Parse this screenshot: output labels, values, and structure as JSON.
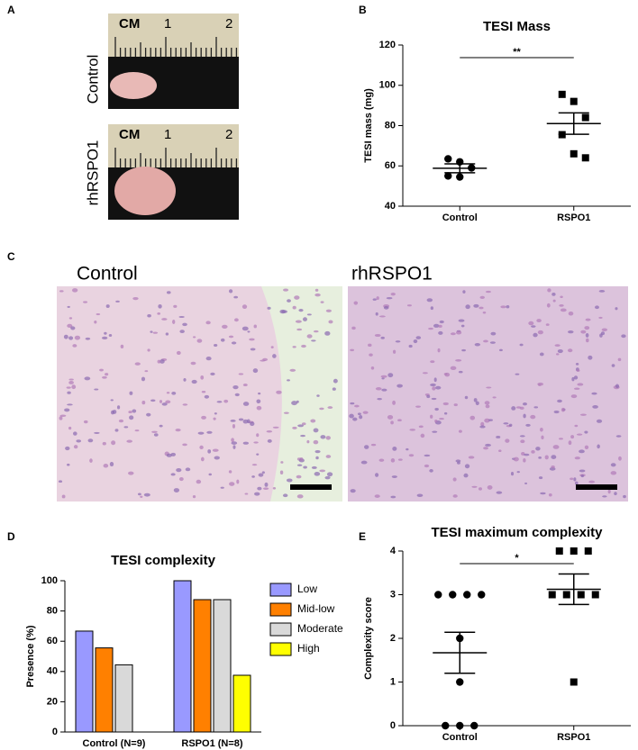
{
  "panel_letters": {
    "a": "A",
    "b": "B",
    "c": "C",
    "d": "D",
    "e": "E"
  },
  "panel_a": {
    "rows": [
      "Control",
      "rhRSPO1"
    ],
    "ruler_unit": "CM",
    "ruler_numbers": [
      1,
      2
    ]
  },
  "panel_c": {
    "labels": [
      "Control",
      "rhRSPO1"
    ]
  },
  "chart_data": [
    {
      "type": "scatter",
      "title": "TESI Mass",
      "y_label": "TESI mass (mg)",
      "categories": [
        "Control",
        "RSPO1"
      ],
      "values": [
        [
          63.5,
          62,
          59,
          55,
          54.5
        ],
        [
          95.5,
          92,
          84,
          75.5,
          66,
          64
        ]
      ],
      "mean": [
        58.8,
        81
      ],
      "sem": [
        2.2,
        5.3
      ],
      "markers": [
        "circle",
        "square"
      ],
      "color": "#000000",
      "ylim": [
        40,
        120
      ],
      "yticks": [
        40,
        60,
        80,
        100,
        120
      ],
      "significance": "**"
    },
    {
      "type": "bar",
      "title": "TESI complexity",
      "y_label": "Presence (%)",
      "categories": [
        "Control (N=9)",
        "RSPO1 (N=8)"
      ],
      "series": [
        {
          "name": "Low",
          "color": "#9999ff",
          "values": [
            66.7,
            100
          ]
        },
        {
          "name": "Mid-low",
          "color": "#ff8000",
          "values": [
            55.6,
            87.5
          ]
        },
        {
          "name": "Moderate",
          "color": "#d9d9d9",
          "values": [
            44.4,
            87.5
          ]
        },
        {
          "name": "High",
          "color": "#ffff00",
          "values": [
            0,
            37.5
          ]
        }
      ],
      "ylim": [
        0,
        100
      ],
      "yticks": [
        0,
        20,
        40,
        60,
        80,
        100
      ]
    },
    {
      "type": "scatter",
      "title": "TESI maximum complexity",
      "y_label": "Complexity score",
      "categories": [
        "Control",
        "RSPO1"
      ],
      "values": [
        [
          3,
          3,
          3,
          3,
          2,
          1,
          0,
          0,
          0
        ],
        [
          4,
          4,
          4,
          3,
          3,
          3,
          3,
          1
        ]
      ],
      "mean": [
        1.67,
        3.125
      ],
      "sem": [
        0.47,
        0.35
      ],
      "markers": [
        "circle",
        "square"
      ],
      "color": "#000000",
      "ylim": [
        0,
        4
      ],
      "yticks": [
        0,
        1,
        2,
        3,
        4
      ],
      "significance": "*"
    }
  ]
}
